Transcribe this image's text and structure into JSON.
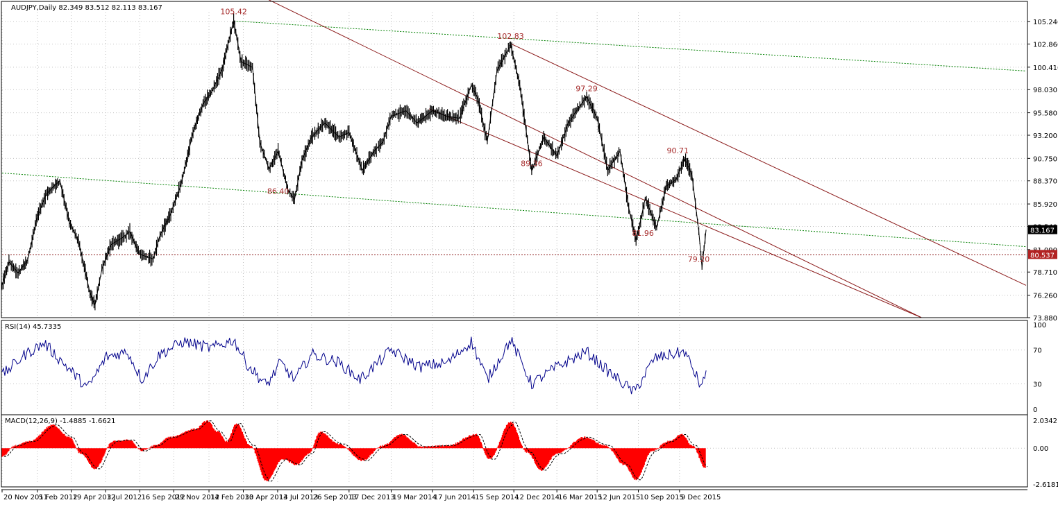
{
  "chart_data": [
    {
      "type": "candlestick",
      "symbol_header": "AUDJPY,Daily  82.349 83.512 82.113 83.167",
      "ylim": [
        73.88,
        106.2
      ],
      "y_ticks": [
        "105.240",
        "102.860",
        "100.410",
        "98.030",
        "95.580",
        "93.200",
        "90.750",
        "88.370",
        "85.920",
        "83.540",
        "81.090",
        "78.710",
        "76.260",
        "73.880"
      ],
      "current_price_label": "83.167",
      "current_price": 83.167,
      "level_label": "80.537",
      "level": 80.537,
      "annotations": [
        {
          "text": "105.42",
          "x": "2013-04-09",
          "y": 105.42
        },
        {
          "text": "102.83",
          "x": "2014-12-05",
          "y": 102.83
        },
        {
          "text": "97.29",
          "x": "2015-05-20",
          "y": 97.29
        },
        {
          "text": "90.71",
          "x": "2015-12-05",
          "y": 90.71
        },
        {
          "text": "89.36",
          "x": "2015-01-20",
          "y": 89.36
        },
        {
          "text": "86.40",
          "x": "2013-07-15",
          "y": 86.4
        },
        {
          "text": "81.96",
          "x": "2015-09-20",
          "y": 81.96
        },
        {
          "text": "79.20",
          "x": "2016-01-20",
          "y": 79.2
        }
      ],
      "price_path": [
        {
          "x": "2011-11-20",
          "y": 77.3
        },
        {
          "x": "2011-12-05",
          "y": 79.8
        },
        {
          "x": "2011-12-25",
          "y": 78.6
        },
        {
          "x": "2012-01-15",
          "y": 80.0
        },
        {
          "x": "2012-02-05",
          "y": 84.6
        },
        {
          "x": "2012-02-25",
          "y": 87.0
        },
        {
          "x": "2012-03-25",
          "y": 88.4
        },
        {
          "x": "2012-04-15",
          "y": 84.0
        },
        {
          "x": "2012-05-05",
          "y": 82.0
        },
        {
          "x": "2012-05-30",
          "y": 76.5
        },
        {
          "x": "2012-06-10",
          "y": 75.2
        },
        {
          "x": "2012-06-25",
          "y": 79.0
        },
        {
          "x": "2012-07-15",
          "y": 81.6
        },
        {
          "x": "2012-08-10",
          "y": 82.4
        },
        {
          "x": "2012-08-25",
          "y": 83.0
        },
        {
          "x": "2012-09-15",
          "y": 80.6
        },
        {
          "x": "2012-10-15",
          "y": 80.1
        },
        {
          "x": "2012-10-30",
          "y": 82.6
        },
        {
          "x": "2012-11-20",
          "y": 84.6
        },
        {
          "x": "2012-12-15",
          "y": 88.0
        },
        {
          "x": "2013-01-10",
          "y": 93.5
        },
        {
          "x": "2013-02-01",
          "y": 96.5
        },
        {
          "x": "2013-02-20",
          "y": 97.8
        },
        {
          "x": "2013-03-15",
          "y": 100.2
        },
        {
          "x": "2013-04-09",
          "y": 105.4
        },
        {
          "x": "2013-04-25",
          "y": 101.0
        },
        {
          "x": "2013-05-20",
          "y": 100.4
        },
        {
          "x": "2013-06-05",
          "y": 92.5
        },
        {
          "x": "2013-06-25",
          "y": 89.6
        },
        {
          "x": "2013-07-15",
          "y": 91.5
        },
        {
          "x": "2013-08-05",
          "y": 87.5
        },
        {
          "x": "2013-08-20",
          "y": 86.4
        },
        {
          "x": "2013-09-05",
          "y": 90.5
        },
        {
          "x": "2013-09-26",
          "y": 93.0
        },
        {
          "x": "2013-10-25",
          "y": 94.5
        },
        {
          "x": "2013-11-25",
          "y": 93.0
        },
        {
          "x": "2013-12-17",
          "y": 93.5
        },
        {
          "x": "2014-01-15",
          "y": 89.5
        },
        {
          "x": "2014-02-10",
          "y": 91.5
        },
        {
          "x": "2014-03-01",
          "y": 92.5
        },
        {
          "x": "2014-03-19",
          "y": 95.2
        },
        {
          "x": "2014-04-20",
          "y": 95.8
        },
        {
          "x": "2014-05-15",
          "y": 94.5
        },
        {
          "x": "2014-06-17",
          "y": 95.8
        },
        {
          "x": "2014-07-20",
          "y": 95.2
        },
        {
          "x": "2014-08-15",
          "y": 95.0
        },
        {
          "x": "2014-09-10",
          "y": 98.5
        },
        {
          "x": "2014-09-25",
          "y": 97.0
        },
        {
          "x": "2014-10-15",
          "y": 92.5
        },
        {
          "x": "2014-11-05",
          "y": 100.0
        },
        {
          "x": "2014-12-05",
          "y": 102.8
        },
        {
          "x": "2014-12-25",
          "y": 98.5
        },
        {
          "x": "2015-01-20",
          "y": 89.4
        },
        {
          "x": "2015-02-15",
          "y": 93.0
        },
        {
          "x": "2015-03-16",
          "y": 91.0
        },
        {
          "x": "2015-04-10",
          "y": 94.5
        },
        {
          "x": "2015-05-20",
          "y": 97.3
        },
        {
          "x": "2015-06-12",
          "y": 95.0
        },
        {
          "x": "2015-07-05",
          "y": 89.5
        },
        {
          "x": "2015-08-01",
          "y": 91.5
        },
        {
          "x": "2015-08-20",
          "y": 85.5
        },
        {
          "x": "2015-09-05",
          "y": 82.0
        },
        {
          "x": "2015-09-25",
          "y": 86.5
        },
        {
          "x": "2015-10-20",
          "y": 83.4
        },
        {
          "x": "2015-11-10",
          "y": 87.8
        },
        {
          "x": "2015-12-01",
          "y": 88.5
        },
        {
          "x": "2015-12-20",
          "y": 90.7
        },
        {
          "x": "2016-01-05",
          "y": 89.0
        },
        {
          "x": "2016-01-20",
          "y": 83.0
        },
        {
          "x": "2016-01-27",
          "y": 79.2
        },
        {
          "x": "2016-02-05",
          "y": 83.2
        }
      ],
      "trendlines": [
        {
          "name": "upper-green",
          "color": "#008000",
          "style": "dotted",
          "points": [
            {
              "x": "2013-04-09",
              "y": 105.3
            },
            {
              "x": "2018-01-04",
              "y": 100.0
            }
          ]
        },
        {
          "name": "lower-green",
          "color": "#008000",
          "style": "dotted",
          "points": [
            {
              "x": "2011-11-20",
              "y": 89.2
            },
            {
              "x": "2018-01-04",
              "y": 81.4
            }
          ]
        },
        {
          "name": "channel-top",
          "color": "#8b1a1a",
          "style": "solid",
          "points": [
            {
              "x": "2014-12-05",
              "y": 102.9
            },
            {
              "x": "2018-01-04",
              "y": 77.3
            }
          ]
        },
        {
          "name": "channel-upper-long",
          "color": "#8b1a1a",
          "style": "solid",
          "points": [
            {
              "x": "2013-05-15",
              "y": 108.5
            },
            {
              "x": "2017-05-20",
              "y": 73.9
            }
          ]
        },
        {
          "name": "channel-lower",
          "color": "#8b1a1a",
          "style": "solid",
          "points": [
            {
              "x": "2014-06-10",
              "y": 96.0
            },
            {
              "x": "2017-05-20",
              "y": 73.9
            }
          ]
        }
      ]
    },
    {
      "type": "line",
      "header": "RSI(14) 45.7335",
      "ylim": [
        0,
        100
      ],
      "y_ticks": [
        "100",
        "70",
        "30",
        "0"
      ],
      "series": [
        {
          "color": "#00008b",
          "points": [
            {
              "x": "2011-11-20",
              "y": 40
            },
            {
              "x": "2012-01-10",
              "y": 65
            },
            {
              "x": "2012-02-20",
              "y": 78
            },
            {
              "x": "2012-04-10",
              "y": 50
            },
            {
              "x": "2012-05-25",
              "y": 25
            },
            {
              "x": "2012-07-05",
              "y": 62
            },
            {
              "x": "2012-08-20",
              "y": 68
            },
            {
              "x": "2012-09-20",
              "y": 35
            },
            {
              "x": "2012-10-30",
              "y": 65
            },
            {
              "x": "2012-12-20",
              "y": 80
            },
            {
              "x": "2013-02-20",
              "y": 72
            },
            {
              "x": "2013-04-09",
              "y": 82
            },
            {
              "x": "2013-05-10",
              "y": 52
            },
            {
              "x": "2013-06-20",
              "y": 28
            },
            {
              "x": "2013-07-20",
              "y": 55
            },
            {
              "x": "2013-08-20",
              "y": 35
            },
            {
              "x": "2013-09-26",
              "y": 65
            },
            {
              "x": "2013-11-25",
              "y": 55
            },
            {
              "x": "2014-01-10",
              "y": 35
            },
            {
              "x": "2014-03-19",
              "y": 70
            },
            {
              "x": "2014-05-20",
              "y": 50
            },
            {
              "x": "2014-07-20",
              "y": 55
            },
            {
              "x": "2014-09-10",
              "y": 80
            },
            {
              "x": "2014-10-15",
              "y": 35
            },
            {
              "x": "2014-12-05",
              "y": 82
            },
            {
              "x": "2015-01-20",
              "y": 30
            },
            {
              "x": "2015-03-16",
              "y": 50
            },
            {
              "x": "2015-05-20",
              "y": 68
            },
            {
              "x": "2015-07-05",
              "y": 45
            },
            {
              "x": "2015-09-01",
              "y": 20
            },
            {
              "x": "2015-10-15",
              "y": 60
            },
            {
              "x": "2015-12-20",
              "y": 68
            },
            {
              "x": "2016-01-27",
              "y": 25
            },
            {
              "x": "2016-02-05",
              "y": 45.7
            }
          ]
        }
      ]
    },
    {
      "type": "histogram",
      "header": "MACD(12,26,9) -1.4885 -1.6621",
      "ylim": [
        -2.6181,
        2.0342
      ],
      "y_ticks": [
        "2.0342",
        "0.00",
        "-2.6181"
      ],
      "bar_color": "#ff0000",
      "signal_color": "#000000",
      "points": [
        {
          "x": "2011-11-20",
          "y": -0.6
        },
        {
          "x": "2011-12-20",
          "y": 0.2
        },
        {
          "x": "2012-01-20",
          "y": 0.5
        },
        {
          "x": "2012-03-10",
          "y": 1.7
        },
        {
          "x": "2012-04-15",
          "y": 0.8
        },
        {
          "x": "2012-05-10",
          "y": -0.4
        },
        {
          "x": "2012-06-10",
          "y": -1.5
        },
        {
          "x": "2012-07-20",
          "y": 0.5
        },
        {
          "x": "2012-08-25",
          "y": 0.6
        },
        {
          "x": "2012-09-20",
          "y": -0.2
        },
        {
          "x": "2012-10-20",
          "y": 0.2
        },
        {
          "x": "2012-11-20",
          "y": 0.8
        },
        {
          "x": "2013-01-15",
          "y": 1.4
        },
        {
          "x": "2013-02-10",
          "y": 2.0
        },
        {
          "x": "2013-03-05",
          "y": 1.2
        },
        {
          "x": "2013-03-25",
          "y": 0.5
        },
        {
          "x": "2013-04-15",
          "y": 1.8
        },
        {
          "x": "2013-05-15",
          "y": 0.2
        },
        {
          "x": "2013-06-20",
          "y": -2.4
        },
        {
          "x": "2013-07-25",
          "y": -0.8
        },
        {
          "x": "2013-08-25",
          "y": -1.2
        },
        {
          "x": "2013-09-20",
          "y": -0.4
        },
        {
          "x": "2013-10-15",
          "y": 1.2
        },
        {
          "x": "2013-11-25",
          "y": 0.3
        },
        {
          "x": "2014-01-15",
          "y": -0.9
        },
        {
          "x": "2014-03-01",
          "y": 0.2
        },
        {
          "x": "2014-04-10",
          "y": 1.0
        },
        {
          "x": "2014-05-25",
          "y": 0.1
        },
        {
          "x": "2014-07-20",
          "y": 0.2
        },
        {
          "x": "2014-09-20",
          "y": 1.0
        },
        {
          "x": "2014-10-20",
          "y": -0.8
        },
        {
          "x": "2014-12-05",
          "y": 1.9
        },
        {
          "x": "2015-01-10",
          "y": -0.3
        },
        {
          "x": "2015-02-10",
          "y": -1.6
        },
        {
          "x": "2015-03-16",
          "y": -0.4
        },
        {
          "x": "2015-05-15",
          "y": 0.8
        },
        {
          "x": "2015-06-30",
          "y": 0.2
        },
        {
          "x": "2015-08-10",
          "y": -1.2
        },
        {
          "x": "2015-09-05",
          "y": -2.3
        },
        {
          "x": "2015-10-10",
          "y": -0.2
        },
        {
          "x": "2015-11-15",
          "y": 0.5
        },
        {
          "x": "2015-12-15",
          "y": 1.0
        },
        {
          "x": "2016-01-05",
          "y": 0.2
        },
        {
          "x": "2016-02-05",
          "y": -1.5
        }
      ]
    }
  ],
  "x_axis": {
    "start": "2011-11-20",
    "end": "2018-01-04",
    "tick_labels": [
      {
        "text": "20 Nov 2011",
        "date": "2011-11-20"
      },
      {
        "text": "5 Feb 2012",
        "date": "2012-02-05"
      },
      {
        "text": "19 Apr 2012",
        "date": "2012-04-19"
      },
      {
        "text": "3 Jul 2012",
        "date": "2012-07-03"
      },
      {
        "text": "16 Sep 2012",
        "date": "2012-09-16"
      },
      {
        "text": "29 Nov 2012",
        "date": "2012-11-29"
      },
      {
        "text": "14 Feb 2013",
        "date": "2013-02-14"
      },
      {
        "text": "30 Apr 2013",
        "date": "2013-04-30"
      },
      {
        "text": "14 Jul 2013",
        "date": "2013-07-14"
      },
      {
        "text": "26 Sep 2013",
        "date": "2013-09-26"
      },
      {
        "text": "17 Dec 2013",
        "date": "2013-12-17"
      },
      {
        "text": "19 Mar 2014",
        "date": "2014-03-19"
      },
      {
        "text": "17 Jun 2014",
        "date": "2014-06-17"
      },
      {
        "text": "15 Sep 2014",
        "date": "2014-09-15"
      },
      {
        "text": "12 Dec 2014",
        "date": "2014-12-12"
      },
      {
        "text": "16 Mar 2015",
        "date": "2015-03-16"
      },
      {
        "text": "12 Jun 2015",
        "date": "2015-06-12"
      },
      {
        "text": "10 Sep 2015",
        "date": "2015-09-10"
      },
      {
        "text": "9 Dec 2015",
        "date": "2015-12-09"
      }
    ]
  },
  "colors": {
    "background": "#ffffff",
    "grid": "#c0c0c0",
    "price": "#000000",
    "rsi": "#00008b",
    "macd": "#ff0000",
    "annotation": "#a52a2a",
    "current_price_bg": "#000000",
    "level_bg": "#b22222"
  }
}
